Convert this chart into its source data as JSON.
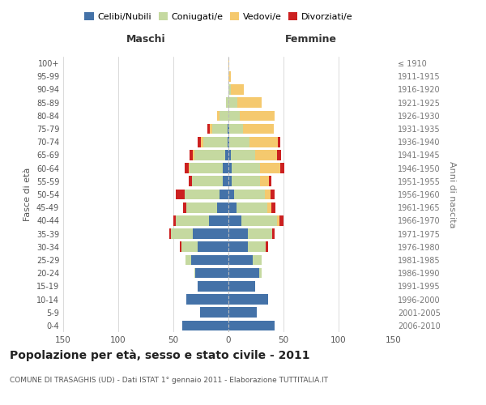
{
  "age_groups": [
    "0-4",
    "5-9",
    "10-14",
    "15-19",
    "20-24",
    "25-29",
    "30-34",
    "35-39",
    "40-44",
    "45-49",
    "50-54",
    "55-59",
    "60-64",
    "65-69",
    "70-74",
    "75-79",
    "80-84",
    "85-89",
    "90-94",
    "95-99",
    "100+"
  ],
  "birth_years": [
    "2006-2010",
    "2001-2005",
    "1996-2000",
    "1991-1995",
    "1986-1990",
    "1981-1985",
    "1976-1980",
    "1971-1975",
    "1966-1970",
    "1961-1965",
    "1956-1960",
    "1951-1955",
    "1946-1950",
    "1941-1945",
    "1936-1940",
    "1931-1935",
    "1926-1930",
    "1921-1925",
    "1916-1920",
    "1911-1915",
    "≤ 1910"
  ],
  "males": {
    "celibi": [
      42,
      26,
      38,
      28,
      30,
      34,
      28,
      32,
      18,
      10,
      8,
      5,
      5,
      3,
      1,
      1,
      0,
      0,
      0,
      0,
      0
    ],
    "coniugati": [
      0,
      0,
      0,
      0,
      1,
      5,
      15,
      20,
      30,
      28,
      32,
      28,
      30,
      28,
      22,
      14,
      8,
      2,
      0,
      0,
      0
    ],
    "vedovi": [
      0,
      0,
      0,
      0,
      0,
      0,
      0,
      0,
      0,
      0,
      0,
      0,
      1,
      1,
      2,
      2,
      2,
      0,
      0,
      0,
      0
    ],
    "divorziati": [
      0,
      0,
      0,
      0,
      0,
      0,
      1,
      2,
      2,
      3,
      8,
      3,
      4,
      3,
      3,
      2,
      0,
      0,
      0,
      0,
      0
    ]
  },
  "females": {
    "nubili": [
      42,
      26,
      36,
      24,
      28,
      22,
      18,
      18,
      12,
      7,
      5,
      3,
      3,
      2,
      1,
      1,
      0,
      0,
      0,
      0,
      0
    ],
    "coniugate": [
      0,
      0,
      0,
      0,
      2,
      8,
      16,
      22,
      32,
      28,
      28,
      26,
      26,
      22,
      18,
      12,
      10,
      8,
      2,
      0,
      0
    ],
    "vedove": [
      0,
      0,
      0,
      0,
      0,
      0,
      0,
      0,
      2,
      4,
      5,
      8,
      18,
      20,
      26,
      28,
      32,
      22,
      12,
      2,
      1
    ],
    "divorziate": [
      0,
      0,
      0,
      0,
      0,
      0,
      2,
      2,
      4,
      4,
      4,
      2,
      4,
      4,
      2,
      0,
      0,
      0,
      0,
      0,
      0
    ]
  },
  "colors": {
    "celibi": "#4472a8",
    "coniugati": "#c5d9a0",
    "vedovi": "#f5c96e",
    "divorziati": "#cc2020"
  },
  "title": "Popolazione per età, sesso e stato civile - 2011",
  "subtitle": "COMUNE DI TRASAGHIS (UD) - Dati ISTAT 1° gennaio 2011 - Elaborazione TUTTITALIA.IT",
  "ylabel_left": "Fasce di età",
  "ylabel_right": "Anni di nascita",
  "xlabel_left": "Maschi",
  "xlabel_right": "Femmine",
  "xlim": 150,
  "background_color": "#ffffff",
  "grid_color": "#cccccc"
}
